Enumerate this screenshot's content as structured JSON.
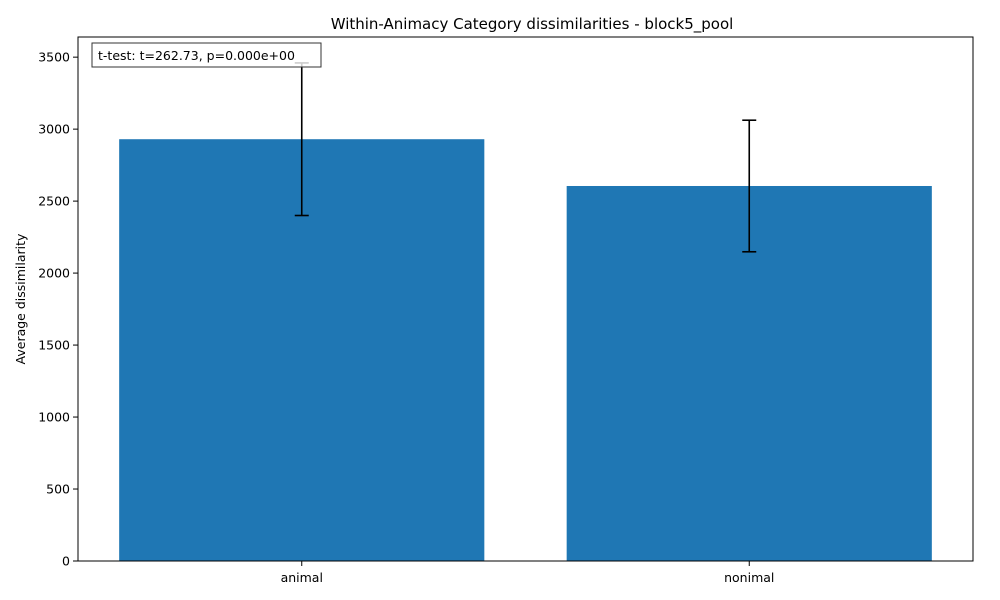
{
  "chart_data": {
    "type": "bar",
    "title": "Within-Animacy Category dissimilarities - block5_pool",
    "xlabel": "",
    "ylabel": "Average dissimilarity",
    "categories": [
      "animal",
      "nonimal"
    ],
    "values": [
      2930,
      2605
    ],
    "error_low": [
      2400,
      2148
    ],
    "error_high": [
      3460,
      3062
    ],
    "ylim": [
      0,
      3640
    ],
    "yticks": [
      0,
      500,
      1000,
      1500,
      2000,
      2500,
      3000,
      3500
    ],
    "bar_color": "#1f77b4",
    "grid": false,
    "annotation": "t-test: t=262.73, p=0.000e+00"
  }
}
